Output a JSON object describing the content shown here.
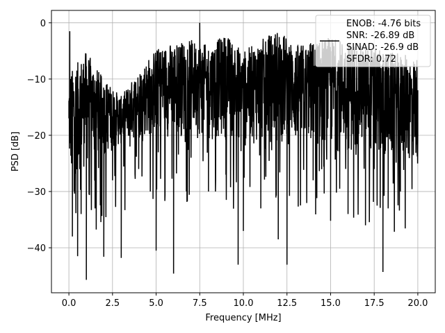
{
  "chart_data": {
    "type": "line",
    "xlabel": "Frequency [MHz]",
    "ylabel": "PSD [dB]",
    "xlim": [
      -1.0,
      21.0
    ],
    "ylim": [
      -48.0,
      2.2
    ],
    "x_ticks": [
      0.0,
      2.5,
      5.0,
      7.5,
      10.0,
      12.5,
      15.0,
      17.5,
      20.0
    ],
    "x_tick_labels": [
      "0.0",
      "2.5",
      "5.0",
      "7.5",
      "10.0",
      "12.5",
      "15.0",
      "17.5",
      "20.0"
    ],
    "y_ticks": [
      0,
      -10,
      -20,
      -30,
      -40
    ],
    "y_tick_labels": [
      "0",
      "−10",
      "−20",
      "−30",
      "−40"
    ],
    "grid": true,
    "legend_position": "top-right",
    "line_color": "#000000",
    "series": [
      {
        "name": "ENOB: -4.76 bits\nSNR: -26.89 dB\nSINAD: -26.9 dB\nSFDR: 0.72",
        "legend_lines": [
          "ENOB: -4.76 bits",
          "SNR: -26.89 dB",
          "SINAD: -26.9 dB",
          "SFDR: 0.72"
        ],
        "x": [
          0.0,
          0.05,
          0.1,
          0.15,
          0.2,
          0.3,
          0.5,
          0.7,
          1.0,
          1.5,
          2.0,
          2.5,
          3.0,
          3.5,
          4.0,
          5.0,
          6.0,
          7.0,
          7.5,
          8.0,
          9.0,
          9.7,
          10.0,
          11.0,
          12.0,
          12.5,
          13.0,
          14.0,
          15.0,
          16.0,
          17.0,
          17.5,
          18.0,
          18.3,
          19.0,
          20.0
        ],
        "y": [
          -17.0,
          -1.5,
          -10.0,
          -25.0,
          -38.0,
          -30.0,
          -41.5,
          -34.0,
          -45.7,
          -33.0,
          -41.6,
          -28.0,
          -41.8,
          -22.0,
          -26.0,
          -40.5,
          -44.6,
          -24.0,
          0.0,
          -30.0,
          -27.0,
          -43.0,
          -37.0,
          -33.0,
          -38.5,
          -43.0,
          -20.0,
          -28.0,
          -35.2,
          -34.0,
          -36.0,
          -26.0,
          -44.3,
          -33.0,
          -30.0,
          -12.0
        ],
        "upper_envelope": [
          -9.0,
          -5.0,
          -10.0,
          -13.0,
          -8.5,
          -4.5,
          -3.5,
          -3.0,
          -4.0,
          -2.0,
          -5.0,
          -1.0,
          -4.0,
          -2.5,
          -4.0,
          -5.0,
          -6.0
        ],
        "lower_envelope": [
          -28.0,
          -26.0,
          -24.0,
          -22.0,
          -21.0,
          -20.5,
          -20.5,
          -20.5,
          -21.0,
          -21.0,
          -21.5,
          -22.0,
          -22.0,
          -23.0,
          -24.0,
          -25.0,
          -26.0
        ],
        "envelope_x": [
          0.0,
          1.0,
          2.0,
          3.0,
          4.0,
          5.0,
          6.0,
          7.0,
          8.0,
          9.0,
          10.0,
          12.0,
          13.0,
          15.0,
          17.0,
          18.0,
          20.0
        ]
      }
    ]
  }
}
